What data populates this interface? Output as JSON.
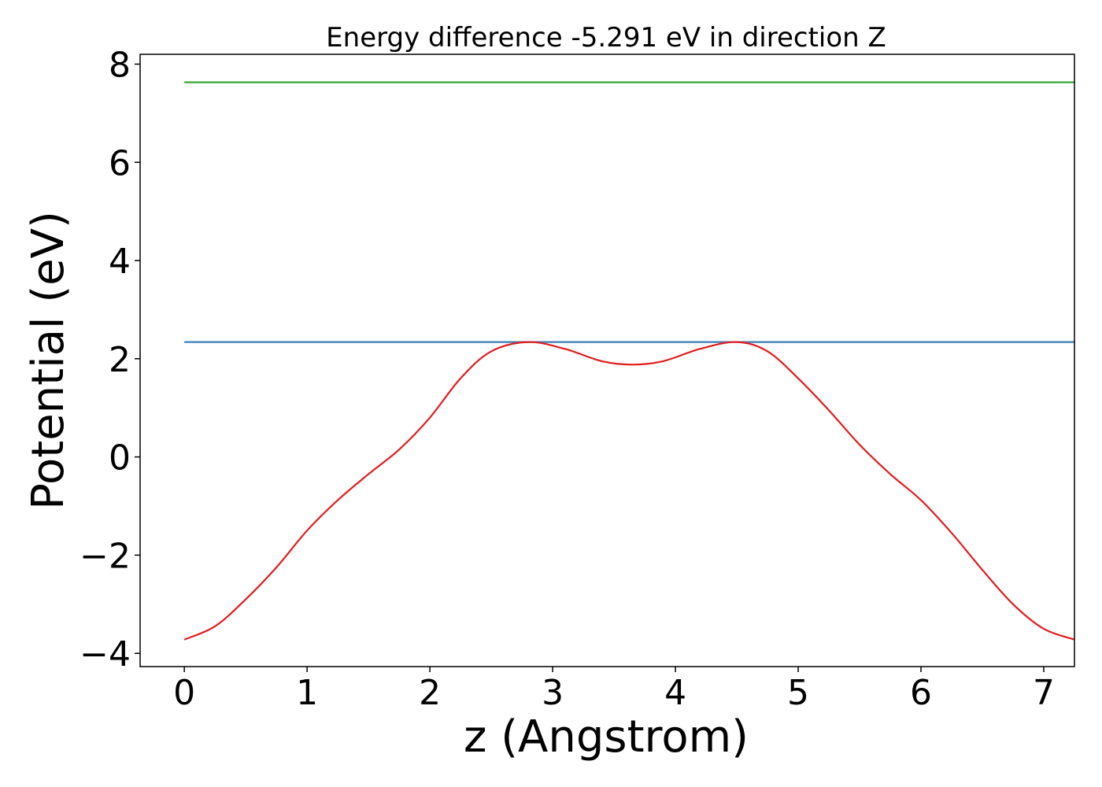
{
  "chart_data": {
    "type": "line",
    "title": "Energy difference -5.291 eV in direction Z",
    "xlabel": "z (Angstrom)",
    "ylabel": "Potential (eV)",
    "xlim": [
      -0.36,
      7.25
    ],
    "ylim": [
      -4.27,
      8.2
    ],
    "x_ticks": [
      0,
      1,
      2,
      3,
      4,
      5,
      6,
      7
    ],
    "x_tick_labels": [
      "0",
      "1",
      "2",
      "3",
      "4",
      "5",
      "6",
      "7"
    ],
    "y_ticks": [
      -4,
      -2,
      0,
      2,
      4,
      6,
      8
    ],
    "y_tick_labels": [
      "−4",
      "−2",
      "0",
      "2",
      "4",
      "6",
      "8"
    ],
    "grid": false,
    "series": [
      {
        "color": "#2ca02c",
        "x": [
          0,
          7.25
        ],
        "y": [
          7.63,
          7.63
        ]
      },
      {
        "color": "#377eb8",
        "x": [
          0,
          7.25
        ],
        "y": [
          2.34,
          2.34
        ]
      },
      {
        "color": "#e41a1c",
        "x": [
          0,
          0.25,
          0.5,
          0.75,
          1.0,
          1.25,
          1.5,
          1.75,
          2.0,
          2.25,
          2.5,
          2.8,
          3.1,
          3.4,
          3.65,
          3.9,
          4.2,
          4.5,
          4.75,
          5.0,
          5.25,
          5.5,
          5.75,
          6.0,
          6.25,
          6.5,
          6.75,
          7.0,
          7.25
        ],
        "y": [
          -3.72,
          -3.45,
          -2.9,
          -2.25,
          -1.5,
          -0.88,
          -0.35,
          0.15,
          0.8,
          1.6,
          2.15,
          2.34,
          2.2,
          1.95,
          1.88,
          1.95,
          2.2,
          2.34,
          2.15,
          1.6,
          0.95,
          0.25,
          -0.35,
          -0.88,
          -1.55,
          -2.3,
          -3.0,
          -3.5,
          -3.72
        ]
      }
    ]
  }
}
